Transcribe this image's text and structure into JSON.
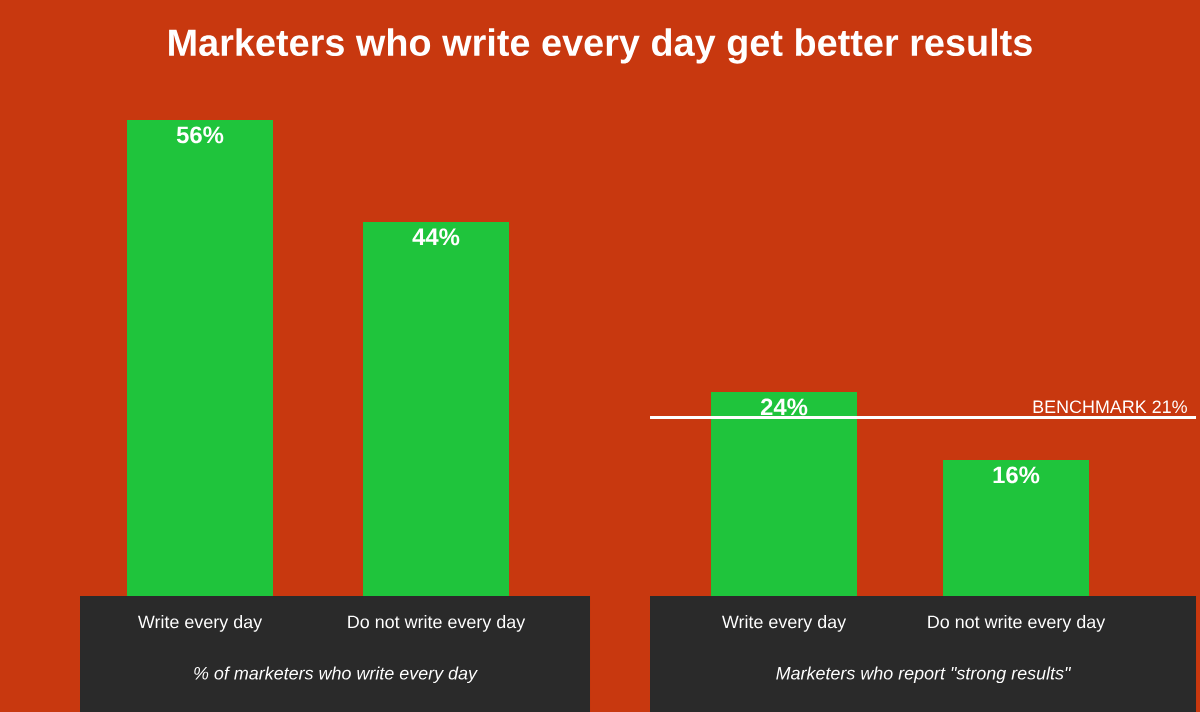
{
  "chart_data": [
    {
      "type": "bar",
      "title": "Marketers who write every day get better results",
      "categories": [
        "Write every day",
        "Do not write every day"
      ],
      "values": [
        56,
        44
      ],
      "value_labels": [
        "56%",
        "44%"
      ],
      "color": "#1fc43c",
      "xlabel": "% of marketers who write every day",
      "tick_labels": "x"
    },
    {
      "type": "bar",
      "categories": [
        "Write every day",
        "Do not write every day"
      ],
      "values": [
        24,
        16
      ],
      "value_labels": [
        "24%",
        "16%"
      ],
      "color": "#1fc43c",
      "xlabel": "Marketers who report \"strong results\"",
      "tick_labels": "x",
      "ref_lines": [
        {
          "axis": "y",
          "value": 21,
          "label": "BENCHMARK 21%",
          "color": "#ffffff"
        }
      ]
    }
  ]
}
